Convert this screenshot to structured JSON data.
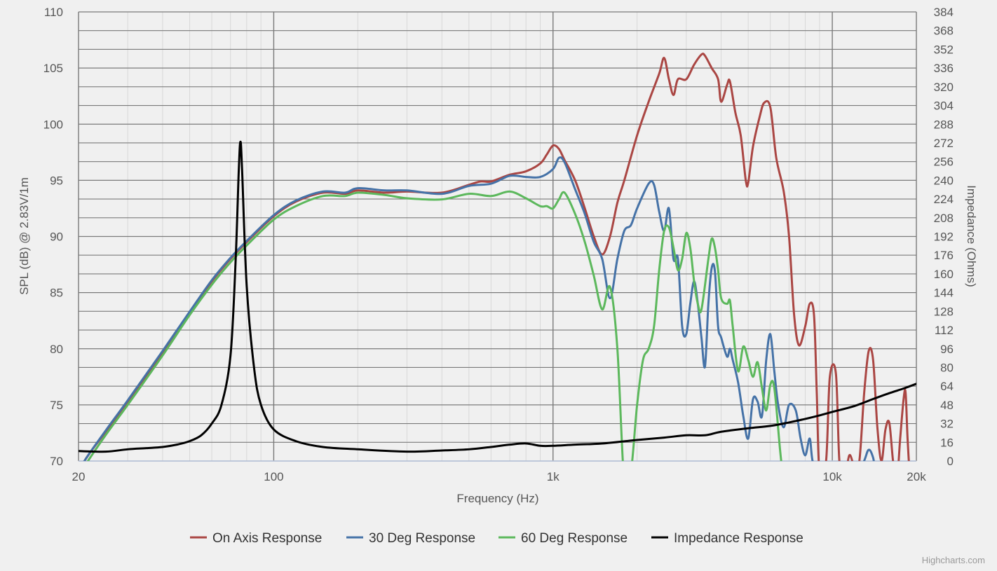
{
  "chart_data": {
    "type": "line",
    "xlabel": "Frequency (Hz)",
    "ylabel": "SPL (dB) @ 2.83V/1m",
    "y2label": "Impedance (Ohms)",
    "x_scale": "log",
    "xlim": [
      20,
      20000
    ],
    "ylim": [
      70,
      110
    ],
    "y2lim": [
      0,
      384
    ],
    "x_ticks": [
      {
        "value": 20,
        "label": "20"
      },
      {
        "value": 100,
        "label": "100"
      },
      {
        "value": 1000,
        "label": "1k"
      },
      {
        "value": 10000,
        "label": "10k"
      },
      {
        "value": 20000,
        "label": "20k"
      }
    ],
    "y_ticks": [
      "70",
      "75",
      "80",
      "85",
      "90",
      "95",
      "100",
      "105",
      "110"
    ],
    "y2_ticks": [
      "0",
      "16",
      "32",
      "48",
      "64",
      "80",
      "96",
      "112",
      "128",
      "144",
      "160",
      "176",
      "192",
      "208",
      "224",
      "240",
      "256",
      "272",
      "288",
      "304",
      "320",
      "336",
      "352",
      "368",
      "384"
    ],
    "grid": true,
    "legend_position": "bottom-center",
    "credits": "Highcharts.com",
    "series": [
      {
        "name": "On Axis Response",
        "color": "#aa4643",
        "axis": "left",
        "points": [
          [
            20,
            68.5
          ],
          [
            21,
            70
          ],
          [
            25,
            72.6
          ],
          [
            30,
            75.3
          ],
          [
            40,
            79.6
          ],
          [
            50,
            83.2
          ],
          [
            60,
            86
          ],
          [
            70,
            88
          ],
          [
            80,
            89.5
          ],
          [
            100,
            91.8
          ],
          [
            120,
            93.1
          ],
          [
            150,
            93.9
          ],
          [
            180,
            93.8
          ],
          [
            200,
            94.1
          ],
          [
            250,
            93.9
          ],
          [
            300,
            94
          ],
          [
            400,
            93.9
          ],
          [
            500,
            94.6
          ],
          [
            550,
            94.9
          ],
          [
            600,
            94.9
          ],
          [
            700,
            95.5
          ],
          [
            800,
            95.8
          ],
          [
            900,
            96.5
          ],
          [
            950,
            97.3
          ],
          [
            1000,
            98.1
          ],
          [
            1050,
            97.8
          ],
          [
            1100,
            96.8
          ],
          [
            1200,
            95
          ],
          [
            1300,
            92.5
          ],
          [
            1400,
            90
          ],
          [
            1500,
            88.4
          ],
          [
            1600,
            90
          ],
          [
            1700,
            93
          ],
          [
            1800,
            95
          ],
          [
            2000,
            99
          ],
          [
            2200,
            102
          ],
          [
            2400,
            104.5
          ],
          [
            2500,
            105.9
          ],
          [
            2600,
            104
          ],
          [
            2700,
            102.6
          ],
          [
            2800,
            104
          ],
          [
            3000,
            104
          ],
          [
            3200,
            105.3
          ],
          [
            3400,
            106.2
          ],
          [
            3500,
            106.1
          ],
          [
            3700,
            105
          ],
          [
            3900,
            104
          ],
          [
            4000,
            102
          ],
          [
            4200,
            103.5
          ],
          [
            4300,
            103.8
          ],
          [
            4500,
            101
          ],
          [
            4700,
            99
          ],
          [
            4900,
            95
          ],
          [
            5000,
            94.8
          ],
          [
            5200,
            98
          ],
          [
            5500,
            100.7
          ],
          [
            5700,
            101.9
          ],
          [
            6000,
            101.5
          ],
          [
            6300,
            97
          ],
          [
            6700,
            94
          ],
          [
            7000,
            90
          ],
          [
            7300,
            83
          ],
          [
            7600,
            80.3
          ],
          [
            8000,
            82
          ],
          [
            8300,
            84
          ],
          [
            8600,
            83
          ],
          [
            8800,
            76
          ],
          [
            9000,
            69
          ],
          [
            9500,
            70
          ],
          [
            9800,
            77.5
          ],
          [
            10300,
            77.8
          ],
          [
            10600,
            70
          ],
          [
            11000,
            68
          ],
          [
            11500,
            70.5
          ],
          [
            12000,
            69.5
          ],
          [
            12500,
            70
          ],
          [
            13000,
            76
          ],
          [
            13500,
            79.8
          ],
          [
            14000,
            79
          ],
          [
            14500,
            73
          ],
          [
            15000,
            70
          ],
          [
            15500,
            72.8
          ],
          [
            16000,
            73.4
          ],
          [
            16500,
            70
          ],
          [
            17000,
            68
          ],
          [
            17500,
            72
          ],
          [
            18000,
            75.5
          ],
          [
            18300,
            76.1
          ],
          [
            18600,
            72
          ],
          [
            19000,
            68
          ]
        ]
      },
      {
        "name": "30 Deg Response",
        "color": "#4572a7",
        "axis": "left",
        "points": [
          [
            20,
            68.7
          ],
          [
            21,
            70
          ],
          [
            25,
            72.7
          ],
          [
            30,
            75.4
          ],
          [
            40,
            79.8
          ],
          [
            50,
            83.3
          ],
          [
            60,
            86.1
          ],
          [
            70,
            88.1
          ],
          [
            80,
            89.6
          ],
          [
            100,
            91.9
          ],
          [
            120,
            93.2
          ],
          [
            150,
            94
          ],
          [
            180,
            93.9
          ],
          [
            200,
            94.3
          ],
          [
            250,
            94.1
          ],
          [
            300,
            94.1
          ],
          [
            400,
            93.8
          ],
          [
            500,
            94.5
          ],
          [
            600,
            94.7
          ],
          [
            700,
            95.4
          ],
          [
            800,
            95.3
          ],
          [
            900,
            95.3
          ],
          [
            1000,
            96
          ],
          [
            1050,
            97
          ],
          [
            1100,
            96.6
          ],
          [
            1200,
            94.2
          ],
          [
            1300,
            92
          ],
          [
            1400,
            89.5
          ],
          [
            1500,
            88
          ],
          [
            1600,
            84.5
          ],
          [
            1700,
            88
          ],
          [
            1800,
            90.5
          ],
          [
            1900,
            91
          ],
          [
            2000,
            92.5
          ],
          [
            2200,
            94.7
          ],
          [
            2300,
            94.6
          ],
          [
            2400,
            92.2
          ],
          [
            2500,
            90.5
          ],
          [
            2600,
            92.5
          ],
          [
            2700,
            88
          ],
          [
            2800,
            88
          ],
          [
            2900,
            82
          ],
          [
            3000,
            81.3
          ],
          [
            3100,
            84
          ],
          [
            3200,
            86
          ],
          [
            3300,
            84
          ],
          [
            3400,
            81
          ],
          [
            3500,
            78.4
          ],
          [
            3600,
            84
          ],
          [
            3700,
            87.2
          ],
          [
            3800,
            86.9
          ],
          [
            3900,
            82
          ],
          [
            4000,
            81
          ],
          [
            4200,
            79.3
          ],
          [
            4300,
            80
          ],
          [
            4400,
            79
          ],
          [
            4600,
            77
          ],
          [
            4800,
            74
          ],
          [
            5000,
            72
          ],
          [
            5200,
            75.5
          ],
          [
            5400,
            75.3
          ],
          [
            5600,
            74
          ],
          [
            5800,
            79
          ],
          [
            6000,
            81.3
          ],
          [
            6200,
            78
          ],
          [
            6400,
            75
          ],
          [
            6700,
            73
          ],
          [
            7000,
            75
          ],
          [
            7400,
            74.5
          ],
          [
            7700,
            72
          ],
          [
            8000,
            70.5
          ],
          [
            8300,
            72
          ],
          [
            8500,
            70
          ],
          [
            9000,
            68
          ],
          [
            10000,
            68
          ],
          [
            11000,
            68
          ],
          [
            12000,
            68
          ],
          [
            13000,
            70
          ],
          [
            13500,
            71
          ],
          [
            14000,
            70.3
          ],
          [
            14500,
            68.5
          ],
          [
            16000,
            68
          ],
          [
            20000,
            68
          ]
        ]
      },
      {
        "name": "60 Deg Response",
        "color": "#5cb85c",
        "axis": "left",
        "points": [
          [
            20,
            68.3
          ],
          [
            21,
            69.5
          ],
          [
            25,
            72.3
          ],
          [
            30,
            75
          ],
          [
            40,
            79.4
          ],
          [
            50,
            83
          ],
          [
            60,
            85.7
          ],
          [
            70,
            87.7
          ],
          [
            80,
            89.2
          ],
          [
            100,
            91.5
          ],
          [
            120,
            92.7
          ],
          [
            150,
            93.6
          ],
          [
            180,
            93.6
          ],
          [
            200,
            93.9
          ],
          [
            250,
            93.7
          ],
          [
            300,
            93.4
          ],
          [
            400,
            93.3
          ],
          [
            500,
            93.8
          ],
          [
            600,
            93.6
          ],
          [
            700,
            94
          ],
          [
            800,
            93.4
          ],
          [
            900,
            92.7
          ],
          [
            950,
            92.7
          ],
          [
            1000,
            92.5
          ],
          [
            1050,
            93.3
          ],
          [
            1100,
            93.9
          ],
          [
            1200,
            92
          ],
          [
            1300,
            89.5
          ],
          [
            1400,
            86.5
          ],
          [
            1500,
            83.5
          ],
          [
            1600,
            85.5
          ],
          [
            1700,
            80
          ],
          [
            1800,
            68
          ],
          [
            1900,
            69
          ],
          [
            2000,
            75
          ],
          [
            2100,
            79
          ],
          [
            2200,
            80
          ],
          [
            2300,
            82
          ],
          [
            2400,
            87
          ],
          [
            2500,
            90.5
          ],
          [
            2600,
            90.8
          ],
          [
            2700,
            89
          ],
          [
            2800,
            87
          ],
          [
            2900,
            88
          ],
          [
            3000,
            90.3
          ],
          [
            3100,
            89
          ],
          [
            3200,
            86
          ],
          [
            3300,
            84
          ],
          [
            3400,
            83.5
          ],
          [
            3600,
            88
          ],
          [
            3700,
            89.8
          ],
          [
            3800,
            89
          ],
          [
            3900,
            87
          ],
          [
            4000,
            84.5
          ],
          [
            4200,
            84
          ],
          [
            4300,
            84.3
          ],
          [
            4400,
            82
          ],
          [
            4600,
            78
          ],
          [
            4800,
            80.2
          ],
          [
            5000,
            79
          ],
          [
            5200,
            77.5
          ],
          [
            5400,
            78.8
          ],
          [
            5600,
            76.5
          ],
          [
            5800,
            74.5
          ],
          [
            6000,
            76.8
          ],
          [
            6200,
            76.5
          ],
          [
            6500,
            71
          ],
          [
            6700,
            68
          ]
        ]
      },
      {
        "name": "Impedance Response",
        "color": "#000000",
        "axis": "right",
        "points": [
          [
            20,
            8.5
          ],
          [
            25,
            8
          ],
          [
            30,
            10
          ],
          [
            35,
            11
          ],
          [
            40,
            12
          ],
          [
            45,
            14
          ],
          [
            50,
            17
          ],
          [
            55,
            22
          ],
          [
            60,
            32
          ],
          [
            65,
            48
          ],
          [
            70,
            90
          ],
          [
            73,
            170
          ],
          [
            75,
            250
          ],
          [
            76,
            273
          ],
          [
            77,
            250
          ],
          [
            80,
            150
          ],
          [
            85,
            80
          ],
          [
            90,
            48
          ],
          [
            100,
            27
          ],
          [
            120,
            17
          ],
          [
            150,
            12
          ],
          [
            200,
            10
          ],
          [
            300,
            8
          ],
          [
            400,
            9
          ],
          [
            500,
            10
          ],
          [
            600,
            12
          ],
          [
            700,
            14
          ],
          [
            800,
            15
          ],
          [
            900,
            13
          ],
          [
            1000,
            13
          ],
          [
            1200,
            14
          ],
          [
            1500,
            15
          ],
          [
            2000,
            18
          ],
          [
            2500,
            20
          ],
          [
            3000,
            22
          ],
          [
            3500,
            22
          ],
          [
            4000,
            25
          ],
          [
            5000,
            28
          ],
          [
            6000,
            30
          ],
          [
            7000,
            33
          ],
          [
            8000,
            36
          ],
          [
            9000,
            39
          ],
          [
            10000,
            42
          ],
          [
            12000,
            47
          ],
          [
            14000,
            53
          ],
          [
            16000,
            58
          ],
          [
            18000,
            62
          ],
          [
            20000,
            66
          ]
        ]
      }
    ]
  }
}
